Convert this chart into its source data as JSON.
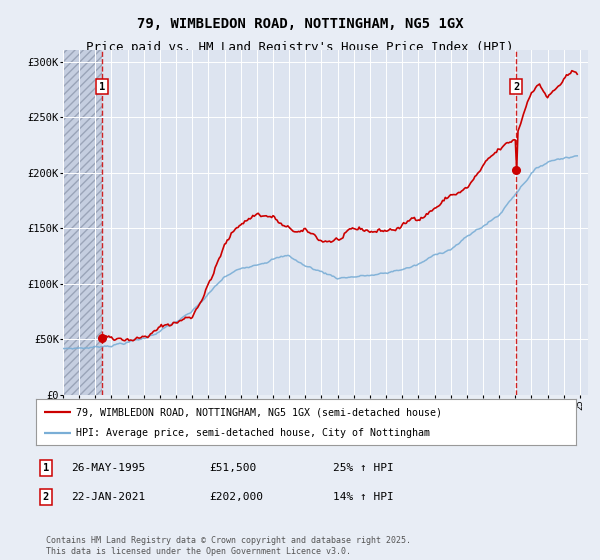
{
  "title": "79, WIMBLEDON ROAD, NOTTINGHAM, NG5 1GX",
  "subtitle": "Price paid vs. HM Land Registry's House Price Index (HPI)",
  "xlim_start": 1993.0,
  "xlim_end": 2025.5,
  "ylim": [
    0,
    310000
  ],
  "yticks": [
    0,
    50000,
    100000,
    150000,
    200000,
    250000,
    300000
  ],
  "ytick_labels": [
    "£0",
    "£50K",
    "£100K",
    "£150K",
    "£200K",
    "£250K",
    "£300K"
  ],
  "hatch_region_end": 1995.41,
  "sale1_x": 1995.41,
  "sale1_y": 51500,
  "sale1_label": "1",
  "sale2_x": 2021.06,
  "sale2_y": 202000,
  "sale2_label": "2",
  "annotation1_date": "26-MAY-1995",
  "annotation1_price": "£51,500",
  "annotation1_hpi": "25% ↑ HPI",
  "annotation2_date": "22-JAN-2021",
  "annotation2_price": "£202,000",
  "annotation2_hpi": "14% ↑ HPI",
  "legend_property": "79, WIMBLEDON ROAD, NOTTINGHAM, NG5 1GX (semi-detached house)",
  "legend_hpi": "HPI: Average price, semi-detached house, City of Nottingham",
  "footer": "Contains HM Land Registry data © Crown copyright and database right 2025.\nThis data is licensed under the Open Government Licence v3.0.",
  "property_line_color": "#cc0000",
  "hpi_line_color": "#7aaed6",
  "background_color": "#e8edf5",
  "plot_bg_color": "#dde4f0",
  "grid_color": "#ffffff",
  "dashed_line_color": "#cc0000",
  "title_fontsize": 10,
  "subtitle_fontsize": 9
}
